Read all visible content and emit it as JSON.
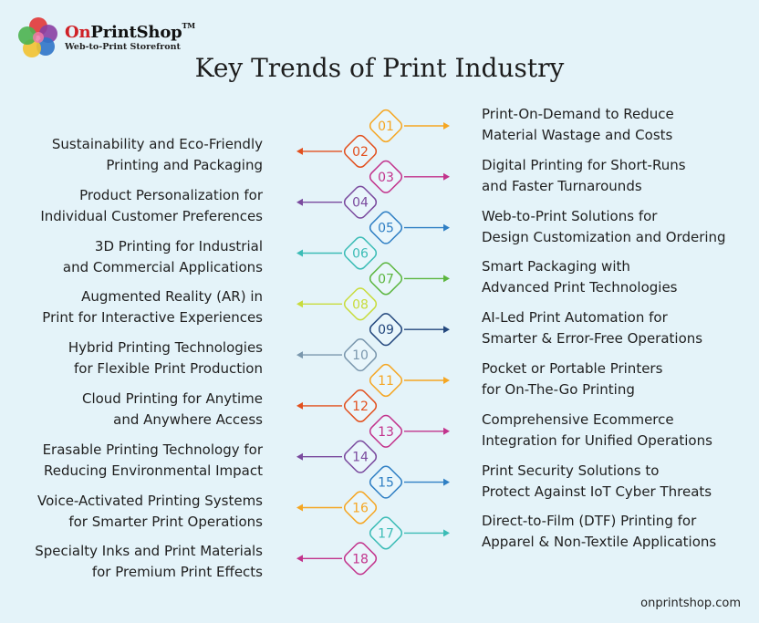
{
  "brand": {
    "name_on": "On",
    "name_rest": "PrintShop",
    "tm": "TM",
    "tagline": "Web-to-Print Storefront"
  },
  "title": "Key Trends of Print Industry",
  "footer": "onprintshop.com",
  "colors": {
    "background": "#e4f3f9",
    "brand_red": "#cf2026"
  },
  "trends": [
    {
      "number": "01",
      "side": "right",
      "color": "#f5a623",
      "lines": [
        "Print-On-Demand to Reduce",
        "Material Wastage and Costs"
      ]
    },
    {
      "number": "02",
      "side": "left",
      "color": "#e2501e",
      "lines": [
        "Sustainability and Eco-Friendly",
        "Printing and Packaging"
      ]
    },
    {
      "number": "03",
      "side": "right",
      "color": "#c2338c",
      "lines": [
        "Digital Printing for Short-Runs",
        "and Faster Turnarounds"
      ]
    },
    {
      "number": "04",
      "side": "left",
      "color": "#7a4a9e",
      "lines": [
        "Product Personalization for",
        "Individual Customer Preferences"
      ]
    },
    {
      "number": "05",
      "side": "right",
      "color": "#2f7fc4",
      "lines": [
        "Web-to-Print Solutions for",
        "Design Customization and Ordering"
      ]
    },
    {
      "number": "06",
      "side": "left",
      "color": "#3bbcb6",
      "lines": [
        "3D Printing for Industrial",
        "and Commercial Applications"
      ]
    },
    {
      "number": "07",
      "side": "right",
      "color": "#5cb63f",
      "lines": [
        "Smart Packaging with",
        "Advanced Print Technologies"
      ]
    },
    {
      "number": "08",
      "side": "left",
      "color": "#c8dc3c",
      "lines": [
        "Augmented Reality (AR) in",
        "Print for Interactive Experiences"
      ]
    },
    {
      "number": "09",
      "side": "right",
      "color": "#23477d",
      "lines": [
        "AI-Led Print Automation for",
        "Smarter & Error-Free Operations"
      ]
    },
    {
      "number": "10",
      "side": "left",
      "color": "#7a97ad",
      "lines": [
        "Hybrid Printing Technologies",
        "for Flexible Print Production"
      ]
    },
    {
      "number": "11",
      "side": "right",
      "color": "#f5a623",
      "lines": [
        "Pocket or Portable Printers",
        "for On-The-Go Printing"
      ]
    },
    {
      "number": "12",
      "side": "left",
      "color": "#e2501e",
      "lines": [
        "Cloud Printing for Anytime",
        "and Anywhere Access"
      ]
    },
    {
      "number": "13",
      "side": "right",
      "color": "#c2338c",
      "lines": [
        "Comprehensive Ecommerce",
        "Integration for Unified Operations"
      ]
    },
    {
      "number": "14",
      "side": "left",
      "color": "#7a4a9e",
      "lines": [
        "Erasable Printing Technology for",
        "Reducing Environmental Impact"
      ]
    },
    {
      "number": "15",
      "side": "right",
      "color": "#2f7fc4",
      "lines": [
        "Print Security Solutions to",
        "Protect Against IoT Cyber Threats"
      ]
    },
    {
      "number": "16",
      "side": "left",
      "color": "#f5a623",
      "lines": [
        "Voice-Activated Printing Systems",
        "for Smarter Print Operations"
      ]
    },
    {
      "number": "17",
      "side": "right",
      "color": "#3bbcb6",
      "lines": [
        "Direct-to-Film (DTF) Printing for",
        "Apparel & Non-Textile Applications"
      ]
    },
    {
      "number": "18",
      "side": "left",
      "color": "#c2338c",
      "lines": [
        "Specialty Inks and Print Materials",
        "for Premium Print Effects"
      ]
    }
  ]
}
